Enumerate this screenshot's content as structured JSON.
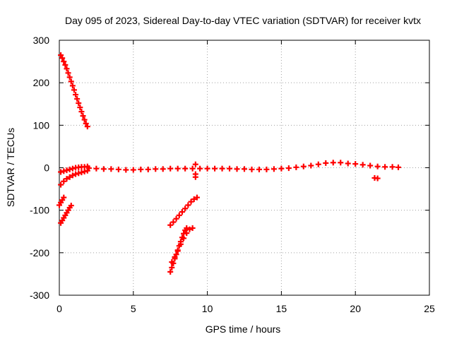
{
  "chart_data": {
    "type": "scatter",
    "title": "Day 095 of 2023, Sidereal Day-to-day VTEC variation (SDTVAR) for receiver kvtx",
    "xlabel": "GPS time / hours",
    "ylabel": "SDTVAR / TECUs",
    "xlim": [
      0,
      25
    ],
    "ylim": [
      -300,
      300
    ],
    "xticks": [
      0,
      5,
      10,
      15,
      20,
      25
    ],
    "yticks": [
      -300,
      -200,
      -100,
      0,
      100,
      200,
      300
    ],
    "grid": true,
    "legend": "none",
    "marker_color": "#ff0000",
    "series": [
      {
        "values": [
          [
            0.1,
            265
          ],
          [
            0.2,
            258
          ],
          [
            0.3,
            250
          ],
          [
            0.4,
            242
          ],
          [
            0.5,
            233
          ],
          [
            0.6,
            223
          ],
          [
            0.7,
            213
          ],
          [
            0.8,
            203
          ],
          [
            0.9,
            193
          ],
          [
            1.0,
            183
          ],
          [
            1.1,
            172
          ],
          [
            1.2,
            162
          ],
          [
            1.3,
            152
          ],
          [
            1.4,
            142
          ],
          [
            1.5,
            132
          ],
          [
            1.6,
            122
          ],
          [
            1.7,
            113
          ],
          [
            1.8,
            104
          ],
          [
            1.9,
            97
          ],
          [
            0.1,
            -10
          ],
          [
            0.3,
            -8
          ],
          [
            0.5,
            -6
          ],
          [
            0.7,
            -4
          ],
          [
            0.9,
            -2
          ],
          [
            1.1,
            0
          ],
          [
            1.3,
            1
          ],
          [
            1.5,
            2
          ],
          [
            1.7,
            2
          ],
          [
            1.9,
            3
          ],
          [
            0.1,
            -40
          ],
          [
            0.3,
            -32
          ],
          [
            0.5,
            -26
          ],
          [
            0.7,
            -22
          ],
          [
            0.9,
            -18
          ],
          [
            1.1,
            -15
          ],
          [
            1.3,
            -13
          ],
          [
            1.5,
            -11
          ],
          [
            1.7,
            -9
          ],
          [
            1.9,
            -7
          ],
          [
            0.0,
            -88
          ],
          [
            0.1,
            -82
          ],
          [
            0.2,
            -76
          ],
          [
            0.3,
            -70
          ],
          [
            0.1,
            -130
          ],
          [
            0.2,
            -124
          ],
          [
            0.3,
            -118
          ],
          [
            0.4,
            -112
          ],
          [
            0.5,
            -106
          ],
          [
            0.6,
            -100
          ],
          [
            0.7,
            -94
          ],
          [
            0.8,
            -89
          ],
          [
            2.0,
            -1
          ],
          [
            2.5,
            -2
          ],
          [
            3.0,
            -3
          ],
          [
            3.5,
            -3
          ],
          [
            4.0,
            -4
          ],
          [
            4.5,
            -5
          ],
          [
            5.0,
            -5
          ],
          [
            5.5,
            -4
          ],
          [
            6.0,
            -4
          ],
          [
            6.5,
            -3
          ],
          [
            7.0,
            -3
          ],
          [
            7.5,
            -2
          ],
          [
            8.0,
            -2
          ],
          [
            8.5,
            -2
          ],
          [
            9.0,
            -2
          ],
          [
            9.5,
            -2
          ],
          [
            10.0,
            -2
          ],
          [
            10.5,
            -2
          ],
          [
            11.0,
            -2
          ],
          [
            11.5,
            -2
          ],
          [
            12.0,
            -3
          ],
          [
            12.5,
            -3
          ],
          [
            13.0,
            -4
          ],
          [
            13.5,
            -4
          ],
          [
            14.0,
            -4
          ],
          [
            14.5,
            -3
          ],
          [
            15.0,
            -2
          ],
          [
            15.5,
            -1
          ],
          [
            16.0,
            1
          ],
          [
            16.5,
            3
          ],
          [
            17.0,
            5
          ],
          [
            17.5,
            8
          ],
          [
            18.0,
            11
          ],
          [
            18.5,
            12
          ],
          [
            19.0,
            12
          ],
          [
            19.5,
            10
          ],
          [
            20.0,
            9
          ],
          [
            20.5,
            7
          ],
          [
            21.0,
            5
          ],
          [
            21.5,
            3
          ],
          [
            22.0,
            2
          ],
          [
            22.5,
            2
          ],
          [
            22.9,
            1
          ],
          [
            9.2,
            8
          ],
          [
            9.2,
            -15
          ],
          [
            9.2,
            -22
          ],
          [
            21.3,
            -24
          ],
          [
            21.5,
            -25
          ],
          [
            7.5,
            -135
          ],
          [
            7.7,
            -128
          ],
          [
            7.9,
            -120
          ],
          [
            8.1,
            -112
          ],
          [
            8.3,
            -104
          ],
          [
            8.5,
            -96
          ],
          [
            8.7,
            -88
          ],
          [
            8.9,
            -80
          ],
          [
            9.1,
            -74
          ],
          [
            9.3,
            -70
          ],
          [
            7.5,
            -245
          ],
          [
            7.6,
            -235
          ],
          [
            7.7,
            -225
          ],
          [
            7.8,
            -214
          ],
          [
            7.9,
            -204
          ],
          [
            8.0,
            -194
          ],
          [
            8.1,
            -184
          ],
          [
            8.2,
            -174
          ],
          [
            8.3,
            -164
          ],
          [
            8.4,
            -155
          ],
          [
            8.5,
            -147
          ],
          [
            8.6,
            -142
          ],
          [
            7.6,
            -222
          ],
          [
            7.8,
            -210
          ],
          [
            8.0,
            -196
          ],
          [
            8.2,
            -180
          ],
          [
            8.4,
            -166
          ],
          [
            8.6,
            -154
          ],
          [
            8.8,
            -145
          ],
          [
            9.0,
            -142
          ]
        ]
      }
    ]
  }
}
